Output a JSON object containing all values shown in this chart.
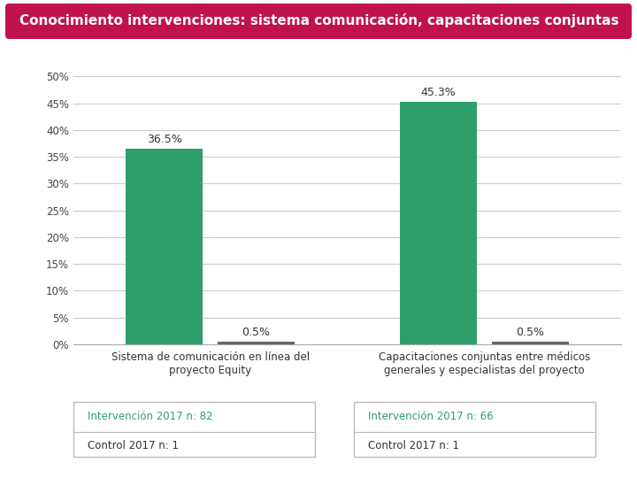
{
  "title": "Conocimiento intervenciones: sistema comunicación, capacitaciones conjuntas",
  "title_bg_color": "#c0134e",
  "title_text_color": "#ffffff",
  "bar_groups": [
    {
      "label": "Sistema de comunicación en línea del\nproyecto Equity",
      "bars": [
        36.5,
        0.5
      ],
      "bar_labels": [
        "36.5%",
        "0.5%"
      ]
    },
    {
      "label": "Capacitaciones conjuntas entre médicos\ngenerales y especialistas del proyecto",
      "bars": [
        45.3,
        0.5
      ],
      "bar_labels": [
        "45.3%",
        "0.5%"
      ]
    }
  ],
  "bar_colors": [
    "#2e9e6b",
    "#666666"
  ],
  "ylim": [
    0,
    50
  ],
  "yticks": [
    0,
    5,
    10,
    15,
    20,
    25,
    30,
    35,
    40,
    45,
    50
  ],
  "ytick_labels": [
    "0%",
    "5%",
    "10%",
    "15%",
    "20%",
    "25%",
    "30%",
    "35%",
    "40%",
    "45%",
    "50%"
  ],
  "legend_boxes": [
    {
      "entries": [
        {
          "label": "Intervención 2017 n: 82",
          "color": "#2e9e6b"
        },
        {
          "label": "Control 2017 n: 1",
          "color": "#333333"
        }
      ]
    },
    {
      "entries": [
        {
          "label": "Intervención 2017 n: 66",
          "color": "#2e9e6b"
        },
        {
          "label": "Control 2017 n: 1",
          "color": "#333333"
        }
      ]
    }
  ],
  "bg_color": "#ffffff",
  "grid_color": "#cccccc",
  "bar_width": 0.28,
  "group_positions": [
    0.5,
    1.5
  ]
}
